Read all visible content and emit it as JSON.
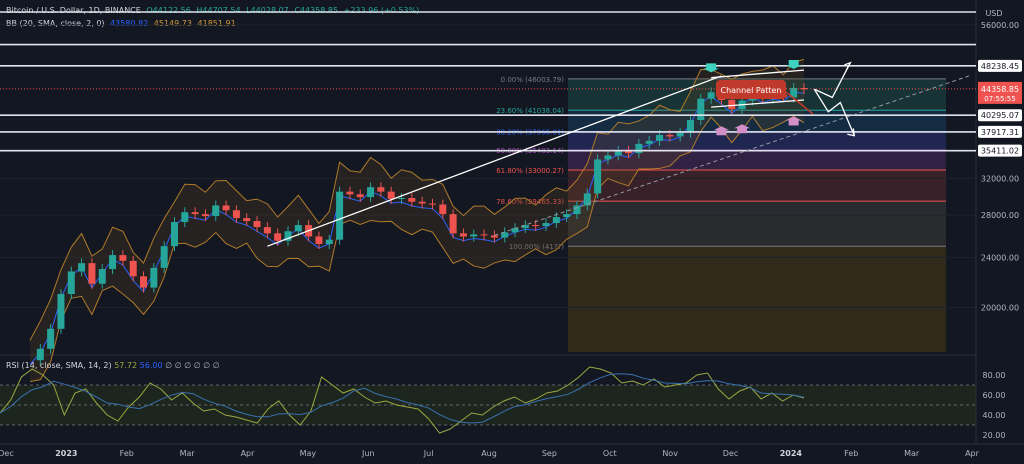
{
  "header": {
    "symbol": "Bitcoin / U.S. Dollar, 1D, BINANCE",
    "open": "O44122.56",
    "high": "H44707.54",
    "low": "L44028.07",
    "close": "C44358.85",
    "change": "+233.96 (+0.53%)",
    "bb_label": "BB (20, SMA, close, 2, 0)",
    "bb_basis": "43580.82",
    "bb_upper": "45149.73",
    "bb_lower": "41851.91"
  },
  "currency": "USD",
  "colors": {
    "background": "#131722",
    "up": "#26a69a",
    "down": "#ef5350",
    "bb_basis": "#2962ff",
    "bb_band": "#b07a2a",
    "rsi": "#9aa840",
    "rsi_ma": "#3a6fb0",
    "annotation": "#c0392b",
    "fib_up_arrow": "#3ed3c0",
    "fib_down_arrow": "#d48fc8"
  },
  "chart_data": {
    "type": "candlestick",
    "price_axis": {
      "ticks": [
        "56000.00",
        "48238.45",
        "44358.85",
        "40295.07",
        "37917.31",
        "35411.02",
        "32000.00",
        "28000.00",
        "24000.00",
        "20000.00"
      ],
      "grid_ticks": [
        56000,
        32000,
        28000,
        24000,
        20000
      ],
      "range": [
        17000,
        60000
      ]
    },
    "time_axis": {
      "labels": [
        "Dec",
        "2023",
        "Feb",
        "Mar",
        "Apr",
        "May",
        "Jun",
        "Jul",
        "Aug",
        "Sep",
        "Oct",
        "Nov",
        "Dec",
        "2024",
        "Feb",
        "Mar",
        "Apr"
      ]
    },
    "last_price": {
      "value": 44358.85,
      "label": "44358.85",
      "countdown": "07:55:55"
    },
    "horizontal_levels": [
      {
        "value": 58700,
        "label": ""
      },
      {
        "value": 52138.01,
        "label": "52138.01"
      },
      {
        "value": 48238.45,
        "label": "48238.45"
      },
      {
        "value": 40295.07,
        "label": "40295.07"
      },
      {
        "value": 37917.31,
        "label": "37917.31"
      },
      {
        "value": 35411.02,
        "label": "35411.02"
      }
    ],
    "fib_levels": [
      {
        "ratio": "0.00%",
        "price": "(46003.79)",
        "value": 46003.79,
        "color": "#787b86"
      },
      {
        "ratio": "23.60%",
        "price": "(41038.04)",
        "value": 41038.04,
        "color": "#26a69a"
      },
      {
        "ratio": "38.20%",
        "price": "(37966.01)",
        "value": 37966.01,
        "color": "#2962ff"
      },
      {
        "ratio": "50.00%",
        "price": "(35483.14)",
        "value": 35483.14,
        "color": "#ab47bc"
      },
      {
        "ratio": "61.80%",
        "price": "(33000.27)",
        "value": 33000.27,
        "color": "#ef5350"
      },
      {
        "ratio": "78.60%",
        "price": "(29465.33)",
        "value": 29465.33,
        "color": "#ef5350"
      },
      {
        "ratio": "100.00%",
        "price": "(41??)",
        "value": 25000,
        "color": "#787b86"
      }
    ],
    "annotation": "Channel Patten",
    "series_prices": [
      16500,
      17200,
      18500,
      21000,
      22800,
      23500,
      21800,
      23000,
      24200,
      23700,
      22400,
      21500,
      23100,
      25000,
      27300,
      28300,
      28100,
      27900,
      29000,
      28500,
      27700,
      27400,
      26800,
      26200,
      25500,
      26400,
      27000,
      25900,
      25200,
      25600,
      30500,
      30200,
      29900,
      31000,
      30500,
      29700,
      29800,
      29400,
      29200,
      29100,
      28100,
      26200,
      25900,
      26100,
      26000,
      25800,
      26300,
      26700,
      27000,
      26900,
      27200,
      27800,
      28100,
      29000,
      30300,
      34300,
      34800,
      35400,
      35100,
      36300,
      36700,
      37500,
      37300,
      37800,
      39600,
      42800,
      43800,
      42600,
      41200,
      42500,
      43700,
      42800,
      43400,
      43000,
      44500,
      44300
    ],
    "rsi": {
      "label": "RSI (14, close, SMA, 14, 2)",
      "value": "57.72",
      "ma_value": "56.00",
      "placeholders": [
        "∅",
        "∅",
        "∅",
        "∅",
        "∅",
        "∅"
      ],
      "ticks": [
        "80.00",
        "60.00",
        "40.00",
        "20.00"
      ],
      "range": [
        15,
        95
      ],
      "band": [
        30,
        70
      ],
      "values": [
        42,
        55,
        78,
        86,
        80,
        70,
        40,
        62,
        66,
        52,
        40,
        34,
        48,
        58,
        72,
        66,
        55,
        62,
        52,
        44,
        46,
        40,
        38,
        35,
        32,
        46,
        54,
        40,
        30,
        44,
        78,
        70,
        62,
        66,
        58,
        52,
        54,
        50,
        48,
        46,
        36,
        22,
        26,
        34,
        42,
        40,
        48,
        54,
        58,
        52,
        56,
        62,
        64,
        70,
        78,
        88,
        86,
        82,
        72,
        74,
        70,
        76,
        68,
        70,
        72,
        80,
        82,
        66,
        56,
        64,
        68,
        56,
        62,
        54,
        60,
        57
      ]
    }
  }
}
